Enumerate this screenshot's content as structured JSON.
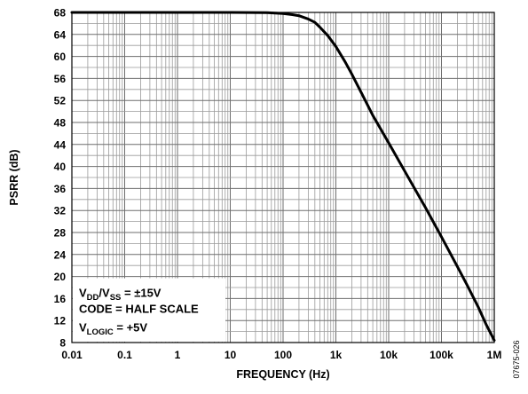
{
  "chart_data": {
    "type": "line",
    "title": "",
    "xlabel": "FREQUENCY (Hz)",
    "ylabel": "PSRR (dB)",
    "xscale": "log",
    "xlim": [
      0.01,
      1000000
    ],
    "ylim": [
      8,
      68
    ],
    "grid": true,
    "x_ticks": [
      {
        "value": 0.01,
        "label": "0.01"
      },
      {
        "value": 0.1,
        "label": "0.1"
      },
      {
        "value": 1,
        "label": "1"
      },
      {
        "value": 10,
        "label": "10"
      },
      {
        "value": 100,
        "label": "100"
      },
      {
        "value": 1000,
        "label": "1k"
      },
      {
        "value": 10000,
        "label": "10k"
      },
      {
        "value": 100000,
        "label": "100k"
      },
      {
        "value": 1000000,
        "label": "1M"
      }
    ],
    "y_ticks": [
      8,
      12,
      16,
      20,
      24,
      28,
      32,
      36,
      40,
      44,
      48,
      52,
      56,
      60,
      64,
      68
    ],
    "series": [
      {
        "x": [
          0.01,
          0.1,
          1,
          10,
          50,
          100,
          150,
          200,
          300,
          400,
          500,
          700,
          1000,
          1500,
          2000,
          3000,
          5000,
          10000,
          20000,
          50000,
          100000,
          200000,
          300000,
          500000,
          700000,
          1000000
        ],
        "y": [
          68,
          68,
          68,
          68,
          67.95,
          67.8,
          67.6,
          67.4,
          66.8,
          66.2,
          65.3,
          63.8,
          61.8,
          59.0,
          56.8,
          53.5,
          49.3,
          44.3,
          39.2,
          32.5,
          27.2,
          21.8,
          18.6,
          14.4,
          11.3,
          8.4
        ]
      }
    ],
    "legend_box": {
      "lines": [
        {
          "id": "supply",
          "parts": [
            {
              "t": "V",
              "sub": false
            },
            {
              "t": "DD",
              "sub": true
            },
            {
              "t": "/V",
              "sub": false
            },
            {
              "t": "SS",
              "sub": true
            },
            {
              "t": " = ±15V",
              "sub": false
            }
          ]
        },
        {
          "id": "code",
          "parts": [
            {
              "t": "CODE = HALF SCALE",
              "sub": false
            }
          ]
        },
        {
          "id": "logic",
          "parts": [
            {
              "t": "V",
              "sub": false
            },
            {
              "t": "LOGIC",
              "sub": true
            },
            {
              "t": " = +5V",
              "sub": false
            }
          ]
        }
      ],
      "placement": "bottom-left"
    },
    "figure_id": "07675-026",
    "colors": {
      "curve": "#000000",
      "grid": "#9a9a9a",
      "frame": "#000000"
    }
  }
}
